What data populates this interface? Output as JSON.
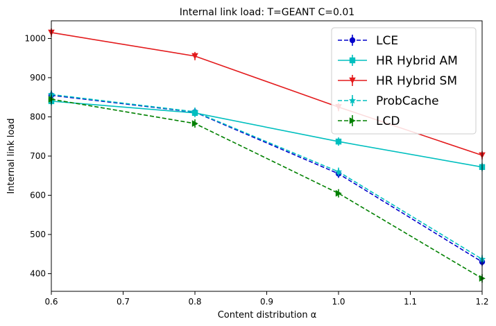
{
  "chart_data": {
    "type": "line",
    "title": "Internal link load: T=GEANT C=0.01",
    "xlabel": "Content distribution α",
    "ylabel": "Internal link load",
    "xlim": [
      0.6,
      1.2
    ],
    "ylim": [
      355,
      1045
    ],
    "xticks": [
      0.6,
      0.7,
      0.8,
      0.9,
      1.0,
      1.1,
      1.2
    ],
    "xtick_labels": [
      "0.6",
      "0.7",
      "0.8",
      "0.9",
      "1.0",
      "1.1",
      "1.2"
    ],
    "yticks": [
      400,
      500,
      600,
      700,
      800,
      900,
      1000
    ],
    "ytick_labels": [
      "400",
      "500",
      "600",
      "700",
      "800",
      "900",
      "1000"
    ],
    "grid": false,
    "legend_position": "top-right",
    "x": [
      0.6,
      0.8,
      1.0,
      1.2
    ],
    "series": [
      {
        "name": "LCE",
        "values": [
          855,
          812,
          655,
          430
        ],
        "color": "#0000cc",
        "dashed": true,
        "marker": "circle"
      },
      {
        "name": "HR Hybrid AM",
        "values": [
          840,
          810,
          737,
          672
        ],
        "color": "#00bfbf",
        "dashed": false,
        "marker": "square"
      },
      {
        "name": "HR Hybrid SM",
        "values": [
          1015,
          955,
          825,
          702
        ],
        "color": "#e31a1c",
        "dashed": false,
        "marker": "triangle-down"
      },
      {
        "name": "ProbCache",
        "values": [
          857,
          813,
          660,
          437
        ],
        "color": "#00bfbf",
        "dashed": true,
        "marker": "star"
      },
      {
        "name": "LCD",
        "values": [
          845,
          783,
          605,
          388
        ],
        "color": "#008000",
        "dashed": true,
        "marker": "triangle-right"
      }
    ]
  }
}
